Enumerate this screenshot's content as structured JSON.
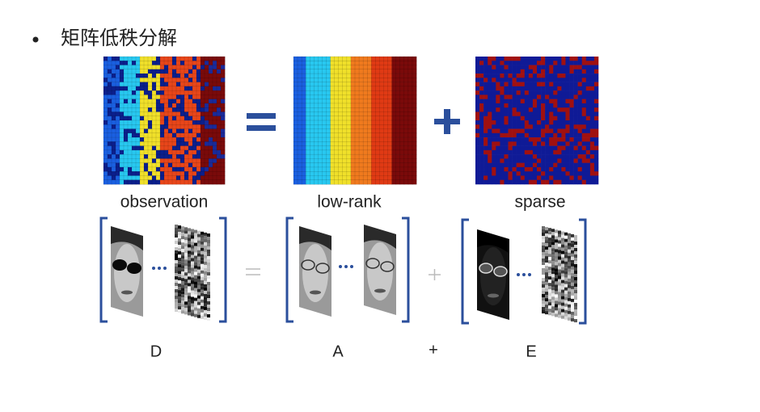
{
  "title": "矩阵低秩分解",
  "matrix_labels": [
    "observation",
    "low-rank",
    "sparse"
  ],
  "face_labels": [
    "D",
    "A",
    "+",
    "E"
  ]
}
